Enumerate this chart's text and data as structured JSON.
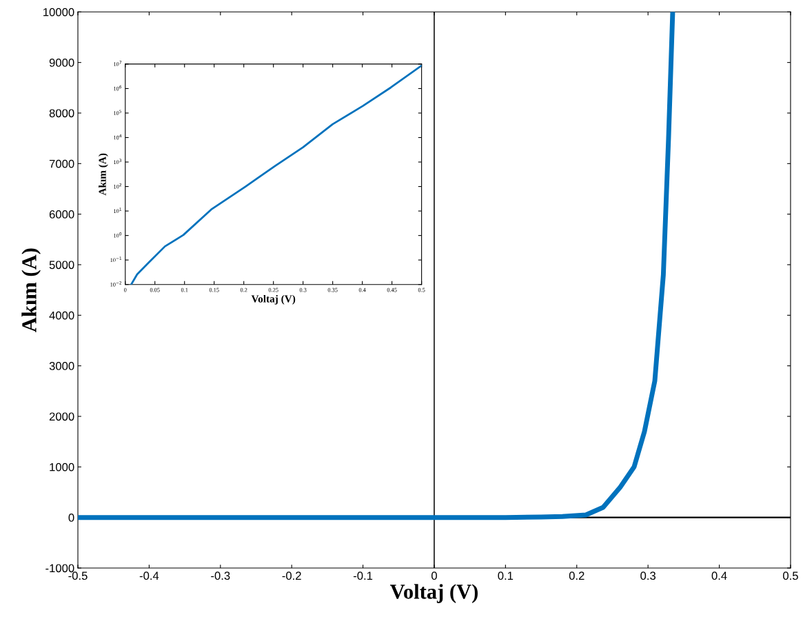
{
  "chart_data": [
    {
      "type": "line",
      "xlabel": "Voltaj (V)",
      "ylabel": "Akım (A)",
      "xlim": [
        -0.5,
        0.5
      ],
      "ylim": [
        -1000,
        10000
      ],
      "xticks": [
        -0.5,
        -0.4,
        -0.3,
        -0.2,
        -0.1,
        0,
        0.1,
        0.2,
        0.3,
        0.4,
        0.5
      ],
      "yticks": [
        -1000,
        0,
        1000,
        2000,
        3000,
        4000,
        5000,
        6000,
        7000,
        8000,
        9000,
        10000
      ],
      "grid": false,
      "marker": "none",
      "line_style": "solid",
      "ref_lines": [
        {
          "axis": "x",
          "value": 0,
          "color": "#404040"
        },
        {
          "axis": "y",
          "value": 0,
          "color": "#000000"
        }
      ],
      "series": [
        {
          "color": "#0072bd",
          "x": [
            -0.5,
            -0.3,
            -0.1,
            0,
            0.1,
            0.15,
            0.18,
            0.2128,
            0.237,
            0.261,
            0.2805,
            0.295,
            0.3095,
            0.3215,
            0.3288,
            0.3346
          ],
          "values": [
            0,
            0,
            0,
            0,
            0,
            10,
            20,
            50,
            200,
            600,
            1000,
            1700,
            2700,
            4800,
            7500,
            10000
          ]
        }
      ]
    },
    {
      "type": "line",
      "xlabel": "Voltaj (V)",
      "ylabel": "Akım (A)",
      "log": "y",
      "xlim": [
        0,
        0.5
      ],
      "ylim": [
        0.01,
        10000000
      ],
      "xticks": [
        0,
        0.05,
        0.1,
        0.15,
        0.2,
        0.25,
        0.3,
        0.35,
        0.4,
        0.45,
        0.5
      ],
      "yticks": [
        {
          "value": 0.01,
          "label": "10$^{−2}$"
        },
        {
          "value": 0.1,
          "label": "10$^{−1}$"
        },
        {
          "value": 1,
          "label": "10$^{0}$"
        },
        {
          "value": 10,
          "label": "10$^{1}$"
        },
        {
          "value": 100,
          "label": "10$^{2}$"
        },
        {
          "value": 1000,
          "label": "10$^{3}$"
        },
        {
          "value": 10000,
          "label": "10$^{4}$"
        },
        {
          "value": 100000,
          "label": "10$^{5}$"
        },
        {
          "value": 1000000,
          "label": "10$^{6}$"
        },
        {
          "value": 10000000,
          "label": "10$^{7}$"
        }
      ],
      "grid": false,
      "marker": "none",
      "line_style": "solid",
      "series": [
        {
          "color": "#0072bd",
          "x": [
            0.01,
            0.02,
            0.04,
            0.067,
            0.098,
            0.145,
            0.203,
            0.253,
            0.3,
            0.35,
            0.401,
            0.448,
            0.5
          ],
          "values": [
            0.01,
            0.026,
            0.08,
            0.36,
            1.05,
            11.5,
            100,
            700,
            4000,
            35000,
            195000,
            1100000,
            8700000
          ]
        }
      ]
    }
  ]
}
